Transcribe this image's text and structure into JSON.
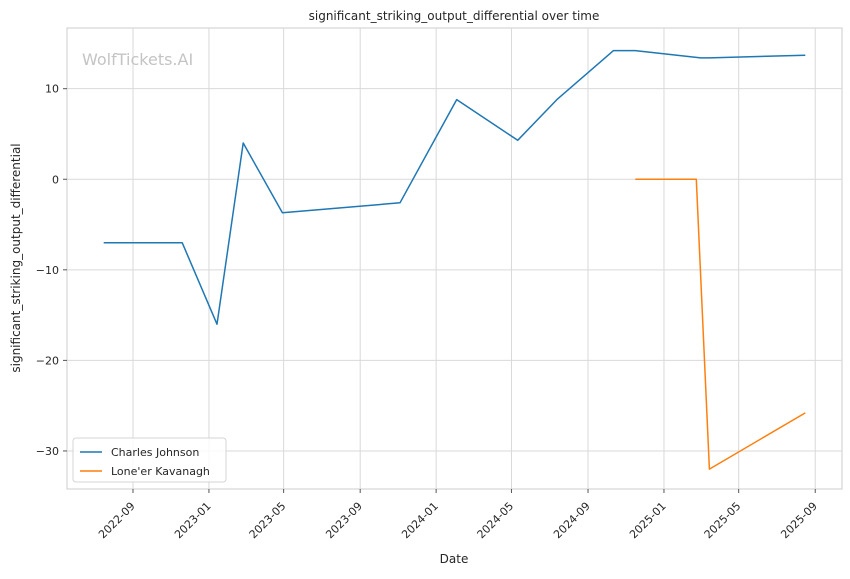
{
  "watermark": "WolfTickets.AI",
  "chart_data": {
    "type": "line",
    "title": "significant_striking_output_differential over time",
    "xlabel": "Date",
    "ylabel": "significant_striking_output_differential",
    "xlim": [
      "2022-05-18",
      "2025-10-14"
    ],
    "ylim": [
      -34.2,
      16.7
    ],
    "x_ticks": [
      "2022-09-01",
      "2023-01-01",
      "2023-05-01",
      "2023-09-01",
      "2024-01-01",
      "2024-05-01",
      "2024-09-01",
      "2025-01-01",
      "2025-05-01",
      "2025-09-01"
    ],
    "x_tick_labels": [
      "2022-09",
      "2023-01",
      "2023-05",
      "2023-09",
      "2024-01",
      "2024-05",
      "2024-09",
      "2025-01",
      "2025-05",
      "2025-09"
    ],
    "y_ticks": [
      10,
      0,
      -10,
      -20,
      -30
    ],
    "y_tick_labels": [
      "10",
      "0",
      "−10",
      "−20",
      "−30"
    ],
    "grid": true,
    "legend_position": "lower-left",
    "series": [
      {
        "name": "Charles Johnson",
        "color": "#1f77b4",
        "points": [
          {
            "x": "2022-07-16",
            "y": -7.0
          },
          {
            "x": "2022-11-19",
            "y": -7.0
          },
          {
            "x": "2023-01-14",
            "y": -16.0
          },
          {
            "x": "2023-02-25",
            "y": 4.0
          },
          {
            "x": "2023-04-29",
            "y": -3.7
          },
          {
            "x": "2023-11-04",
            "y": -2.6
          },
          {
            "x": "2024-02-03",
            "y": 8.8
          },
          {
            "x": "2024-05-11",
            "y": 4.3
          },
          {
            "x": "2024-07-13",
            "y": 8.8
          },
          {
            "x": "2024-10-12",
            "y": 14.2
          },
          {
            "x": "2024-11-16",
            "y": 14.2
          },
          {
            "x": "2025-03-01",
            "y": 13.4
          },
          {
            "x": "2025-03-15",
            "y": 13.4
          },
          {
            "x": "2025-08-16",
            "y": 13.7
          }
        ]
      },
      {
        "name": "Lone'er Kavanagh",
        "color": "#ff7f0e",
        "points": [
          {
            "x": "2024-11-16",
            "y": 0.0
          },
          {
            "x": "2025-02-22",
            "y": 0.0
          },
          {
            "x": "2025-03-15",
            "y": -32.0
          },
          {
            "x": "2025-08-16",
            "y": -25.8
          }
        ]
      }
    ]
  }
}
